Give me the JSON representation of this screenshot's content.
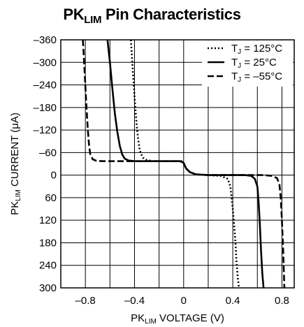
{
  "chart_data": {
    "type": "line",
    "title": {
      "main": "PK",
      "sub": "LIM",
      "rest": " Pin Characteristics"
    },
    "xlabel": {
      "main": "PK",
      "sub": "LIM",
      "rest": " VOLTAGE (V)"
    },
    "ylabel": {
      "main": "PK",
      "sub": "LIM",
      "rest": " CURRENT (μA)"
    },
    "xlim": [
      -1.0,
      0.9
    ],
    "ylim": [
      -360,
      300
    ],
    "y_inverted": true,
    "grid": true,
    "x_ticks": [
      -0.8,
      -0.4,
      0,
      0.4,
      0.8
    ],
    "x_tick_labels": [
      "–0.8",
      "–0.4",
      "0",
      "0.4",
      "0.8"
    ],
    "x_grid": [
      -0.8,
      -0.6,
      -0.4,
      -0.2,
      0,
      0.2,
      0.4,
      0.6,
      0.8
    ],
    "y_ticks": [
      -360,
      -300,
      -240,
      -180,
      -120,
      -60,
      0,
      60,
      120,
      180,
      240,
      300
    ],
    "y_tick_labels": [
      "–360",
      "–300",
      "–240",
      "–180",
      "–120",
      "–60",
      "0",
      "60",
      "120",
      "180",
      "240",
      "300"
    ],
    "legend_position": "top-right",
    "series": [
      {
        "label_main": "T",
        "label_sub": "J",
        "label_rest": " = 125°C",
        "style": "dotted",
        "points": [
          [
            -0.43,
            -360
          ],
          [
            -0.42,
            -310
          ],
          [
            -0.41,
            -260
          ],
          [
            -0.4,
            -210
          ],
          [
            -0.39,
            -165
          ],
          [
            -0.38,
            -125
          ],
          [
            -0.37,
            -95
          ],
          [
            -0.36,
            -72
          ],
          [
            -0.35,
            -58
          ],
          [
            -0.33,
            -46
          ],
          [
            -0.3,
            -40
          ],
          [
            -0.25,
            -37
          ],
          [
            -0.1,
            -37
          ],
          [
            -0.03,
            -37
          ],
          [
            0,
            -32
          ],
          [
            0.02,
            -18
          ],
          [
            0.05,
            -8
          ],
          [
            0.1,
            -2
          ],
          [
            0.2,
            0
          ],
          [
            0.3,
            2
          ],
          [
            0.36,
            10
          ],
          [
            0.38,
            30
          ],
          [
            0.4,
            90
          ],
          [
            0.42,
            170
          ],
          [
            0.43,
            230
          ],
          [
            0.44,
            270
          ],
          [
            0.45,
            300
          ]
        ]
      },
      {
        "label_main": "T",
        "label_sub": "J",
        "label_rest": " = 25°C",
        "style": "solid",
        "points": [
          [
            -0.62,
            -360
          ],
          [
            -0.6,
            -300
          ],
          [
            -0.58,
            -230
          ],
          [
            -0.56,
            -165
          ],
          [
            -0.54,
            -115
          ],
          [
            -0.52,
            -78
          ],
          [
            -0.5,
            -55
          ],
          [
            -0.48,
            -44
          ],
          [
            -0.45,
            -39
          ],
          [
            -0.4,
            -37
          ],
          [
            -0.1,
            -37
          ],
          [
            -0.02,
            -37
          ],
          [
            0,
            -32
          ],
          [
            0.02,
            -18
          ],
          [
            0.05,
            -8
          ],
          [
            0.1,
            -2
          ],
          [
            0.2,
            0
          ],
          [
            0.5,
            0
          ],
          [
            0.55,
            2
          ],
          [
            0.58,
            10
          ],
          [
            0.6,
            30
          ],
          [
            0.61,
            70
          ],
          [
            0.62,
            130
          ],
          [
            0.63,
            200
          ],
          [
            0.64,
            260
          ],
          [
            0.65,
            300
          ]
        ]
      },
      {
        "label_main": "T",
        "label_sub": "J",
        "label_rest": " = –55°C",
        "style": "dashed",
        "points": [
          [
            -0.82,
            -360
          ],
          [
            -0.81,
            -300
          ],
          [
            -0.8,
            -235
          ],
          [
            -0.79,
            -175
          ],
          [
            -0.78,
            -120
          ],
          [
            -0.77,
            -80
          ],
          [
            -0.76,
            -55
          ],
          [
            -0.74,
            -42
          ],
          [
            -0.71,
            -38
          ],
          [
            -0.65,
            -37
          ],
          [
            -0.1,
            -37
          ],
          [
            -0.02,
            -37
          ],
          [
            0,
            -32
          ],
          [
            0.02,
            -18
          ],
          [
            0.05,
            -8
          ],
          [
            0.1,
            -2
          ],
          [
            0.2,
            0
          ],
          [
            0.65,
            0
          ],
          [
            0.72,
            2
          ],
          [
            0.76,
            8
          ],
          [
            0.78,
            25
          ],
          [
            0.79,
            60
          ],
          [
            0.8,
            120
          ],
          [
            0.81,
            200
          ],
          [
            0.82,
            300
          ]
        ]
      }
    ]
  }
}
